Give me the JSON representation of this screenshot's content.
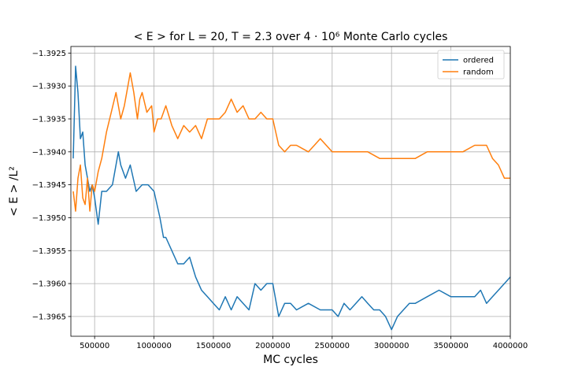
{
  "chart_data": {
    "type": "line",
    "title": "< E >  for L = 20, T = 2.3 over 4 · 10⁶ Monte Carlo cycles",
    "xlabel": "MC cycles",
    "ylabel": "< E > /L²",
    "xlim": [
      300000,
      4000000
    ],
    "ylim": [
      -1.3968,
      -1.3924
    ],
    "xticks": [
      500000,
      1000000,
      1500000,
      2000000,
      2500000,
      3000000,
      3500000,
      4000000
    ],
    "xtick_labels": [
      "500000",
      "1000000",
      "1500000",
      "2000000",
      "2500000",
      "3000000",
      "3500000",
      "4000000"
    ],
    "yticks": [
      -1.3925,
      -1.393,
      -1.3935,
      -1.394,
      -1.3945,
      -1.395,
      -1.3955,
      -1.396,
      -1.3965
    ],
    "ytick_labels": [
      "−1.3925",
      "−1.3930",
      "−1.3935",
      "−1.3940",
      "−1.3945",
      "−1.3950",
      "−1.3955",
      "−1.3960",
      "−1.3965"
    ],
    "grid": true,
    "legend_position": "top-right",
    "series": [
      {
        "name": "ordered",
        "color": "#1f77b4",
        "x": [
          320000,
          340000,
          360000,
          380000,
          400000,
          420000,
          440000,
          460000,
          480000,
          500000,
          530000,
          560000,
          600000,
          650000,
          700000,
          720000,
          760000,
          800000,
          850000,
          900000,
          950000,
          1000000,
          1050000,
          1080000,
          1100000,
          1150000,
          1200000,
          1250000,
          1300000,
          1350000,
          1400000,
          1450000,
          1500000,
          1550000,
          1600000,
          1650000,
          1700000,
          1750000,
          1800000,
          1850000,
          1900000,
          1950000,
          2000000,
          2050000,
          2100000,
          2150000,
          2200000,
          2300000,
          2400000,
          2500000,
          2550000,
          2600000,
          2650000,
          2700000,
          2750000,
          2800000,
          2850000,
          2900000,
          2950000,
          3000000,
          3050000,
          3100000,
          3150000,
          3200000,
          3300000,
          3400000,
          3500000,
          3600000,
          3700000,
          3750000,
          3800000,
          3850000,
          3900000,
          3950000,
          4000000
        ],
        "y": [
          -1.3941,
          -1.3927,
          -1.3931,
          -1.3938,
          -1.3937,
          -1.3942,
          -1.3944,
          -1.3946,
          -1.3945,
          -1.3947,
          -1.3951,
          -1.3946,
          -1.3946,
          -1.3945,
          -1.394,
          -1.3942,
          -1.3944,
          -1.3942,
          -1.3946,
          -1.3945,
          -1.3945,
          -1.3946,
          -1.395,
          -1.3953,
          -1.3953,
          -1.3955,
          -1.3957,
          -1.3957,
          -1.3956,
          -1.3959,
          -1.3961,
          -1.3962,
          -1.3963,
          -1.3964,
          -1.3962,
          -1.3964,
          -1.3962,
          -1.3963,
          -1.3964,
          -1.396,
          -1.3961,
          -1.396,
          -1.396,
          -1.3965,
          -1.3963,
          -1.3963,
          -1.3964,
          -1.3963,
          -1.3964,
          -1.3964,
          -1.3965,
          -1.3963,
          -1.3964,
          -1.3963,
          -1.3962,
          -1.3963,
          -1.3964,
          -1.3964,
          -1.3965,
          -1.3967,
          -1.3965,
          -1.3964,
          -1.3963,
          -1.3963,
          -1.3962,
          -1.3961,
          -1.3962,
          -1.3962,
          -1.3962,
          -1.3961,
          -1.3963,
          -1.3962,
          -1.3961,
          -1.396,
          -1.3959
        ]
      },
      {
        "name": "random",
        "color": "#ff7f0e",
        "x": [
          320000,
          340000,
          360000,
          380000,
          400000,
          420000,
          440000,
          460000,
          480000,
          500000,
          530000,
          560000,
          600000,
          640000,
          680000,
          720000,
          750000,
          780000,
          800000,
          830000,
          860000,
          880000,
          900000,
          940000,
          980000,
          1000000,
          1030000,
          1060000,
          1100000,
          1150000,
          1200000,
          1250000,
          1300000,
          1350000,
          1400000,
          1450000,
          1500000,
          1550000,
          1600000,
          1650000,
          1700000,
          1750000,
          1800000,
          1850000,
          1900000,
          1950000,
          2000000,
          2050000,
          2100000,
          2150000,
          2200000,
          2300000,
          2350000,
          2400000,
          2500000,
          2600000,
          2700000,
          2800000,
          2900000,
          3000000,
          3100000,
          3200000,
          3300000,
          3400000,
          3500000,
          3600000,
          3700000,
          3800000,
          3850000,
          3900000,
          3950000,
          4000000
        ],
        "y": [
          -1.3946,
          -1.3949,
          -1.3944,
          -1.3942,
          -1.3947,
          -1.3948,
          -1.3944,
          -1.3949,
          -1.3945,
          -1.3946,
          -1.3943,
          -1.3941,
          -1.3937,
          -1.3934,
          -1.3931,
          -1.3935,
          -1.3933,
          -1.393,
          -1.3928,
          -1.3931,
          -1.3935,
          -1.3932,
          -1.3931,
          -1.3934,
          -1.3933,
          -1.3937,
          -1.3935,
          -1.3935,
          -1.3933,
          -1.3936,
          -1.3938,
          -1.3936,
          -1.3937,
          -1.3936,
          -1.3938,
          -1.3935,
          -1.3935,
          -1.3935,
          -1.3934,
          -1.3932,
          -1.3934,
          -1.3933,
          -1.3935,
          -1.3935,
          -1.3934,
          -1.3935,
          -1.3935,
          -1.3939,
          -1.394,
          -1.3939,
          -1.3939,
          -1.394,
          -1.3939,
          -1.3938,
          -1.394,
          -1.394,
          -1.394,
          -1.394,
          -1.3941,
          -1.3941,
          -1.3941,
          -1.3941,
          -1.394,
          -1.394,
          -1.394,
          -1.394,
          -1.3939,
          -1.3939,
          -1.3941,
          -1.3942,
          -1.3944,
          -1.3944
        ]
      }
    ]
  }
}
